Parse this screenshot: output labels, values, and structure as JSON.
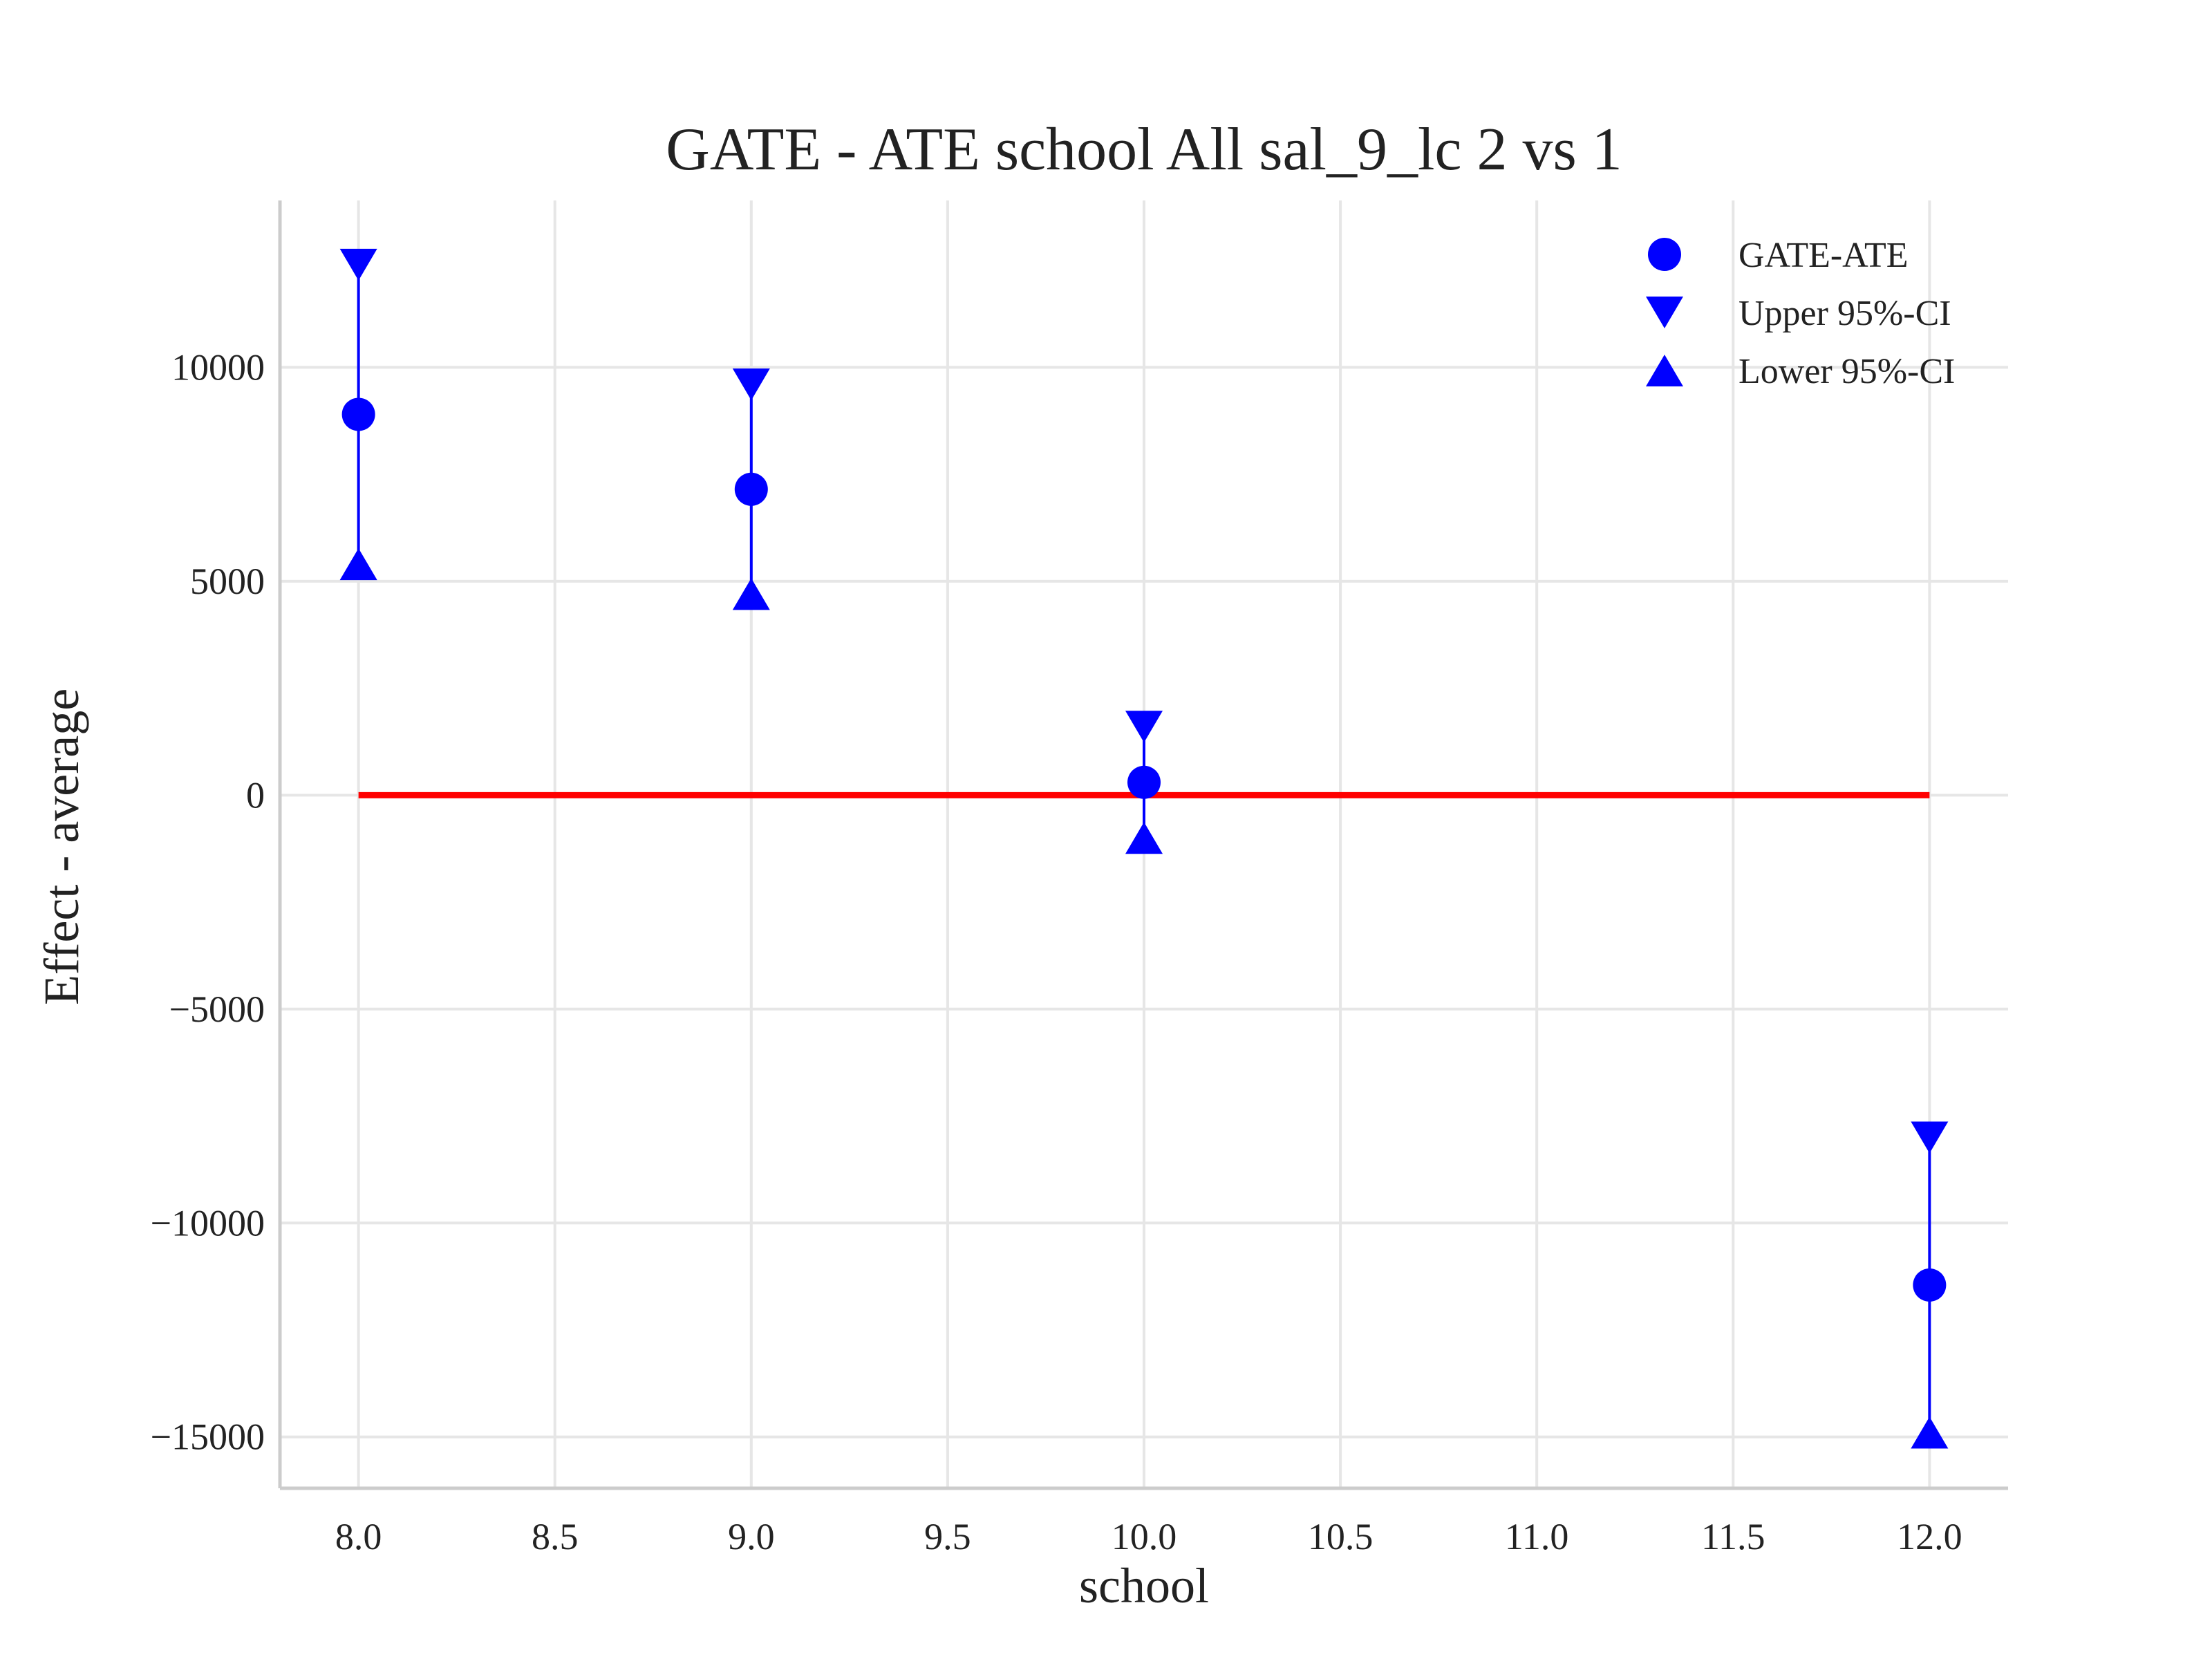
{
  "chart_data": {
    "type": "scatter",
    "title": "GATE - ATE school All sal_9_lc  2 vs 1",
    "xlabel": "school",
    "ylabel": "Effect - average",
    "xlim": [
      7.8,
      12.2
    ],
    "ylim": [
      -16200,
      13900
    ],
    "xticks": [
      8.0,
      8.5,
      9.0,
      9.5,
      10.0,
      10.5,
      11.0,
      11.5,
      12.0
    ],
    "xtick_labels": [
      "8.0",
      "8.5",
      "9.0",
      "9.5",
      "10.0",
      "10.5",
      "11.0",
      "11.5",
      "12.0"
    ],
    "yticks": [
      10000,
      5000,
      0,
      -5000,
      -10000,
      -15000
    ],
    "ytick_labels": [
      "10000",
      "5000",
      "0",
      "−5000",
      "−10000",
      "−15000"
    ],
    "grid": true,
    "legend_position": "upper-right",
    "x": [
      8.0,
      9.0,
      10.0,
      12.0
    ],
    "series": [
      {
        "name": "GATE-ATE",
        "marker": "circle",
        "color": "#0000ff",
        "values": [
          8900,
          7150,
          300,
          -11450
        ]
      },
      {
        "name": "Upper 95%-CI",
        "marker": "triangle-down",
        "color": "#0000ff",
        "values": [
          12400,
          9600,
          1600,
          -8000
        ]
      },
      {
        "name": "Lower 95%-CI",
        "marker": "triangle-up",
        "color": "#0000ff",
        "values": [
          5400,
          4700,
          -1000,
          -14900
        ]
      }
    ],
    "reference_line": {
      "y": 0,
      "x_range": [
        8.0,
        12.0
      ],
      "color": "#ff0000"
    }
  }
}
